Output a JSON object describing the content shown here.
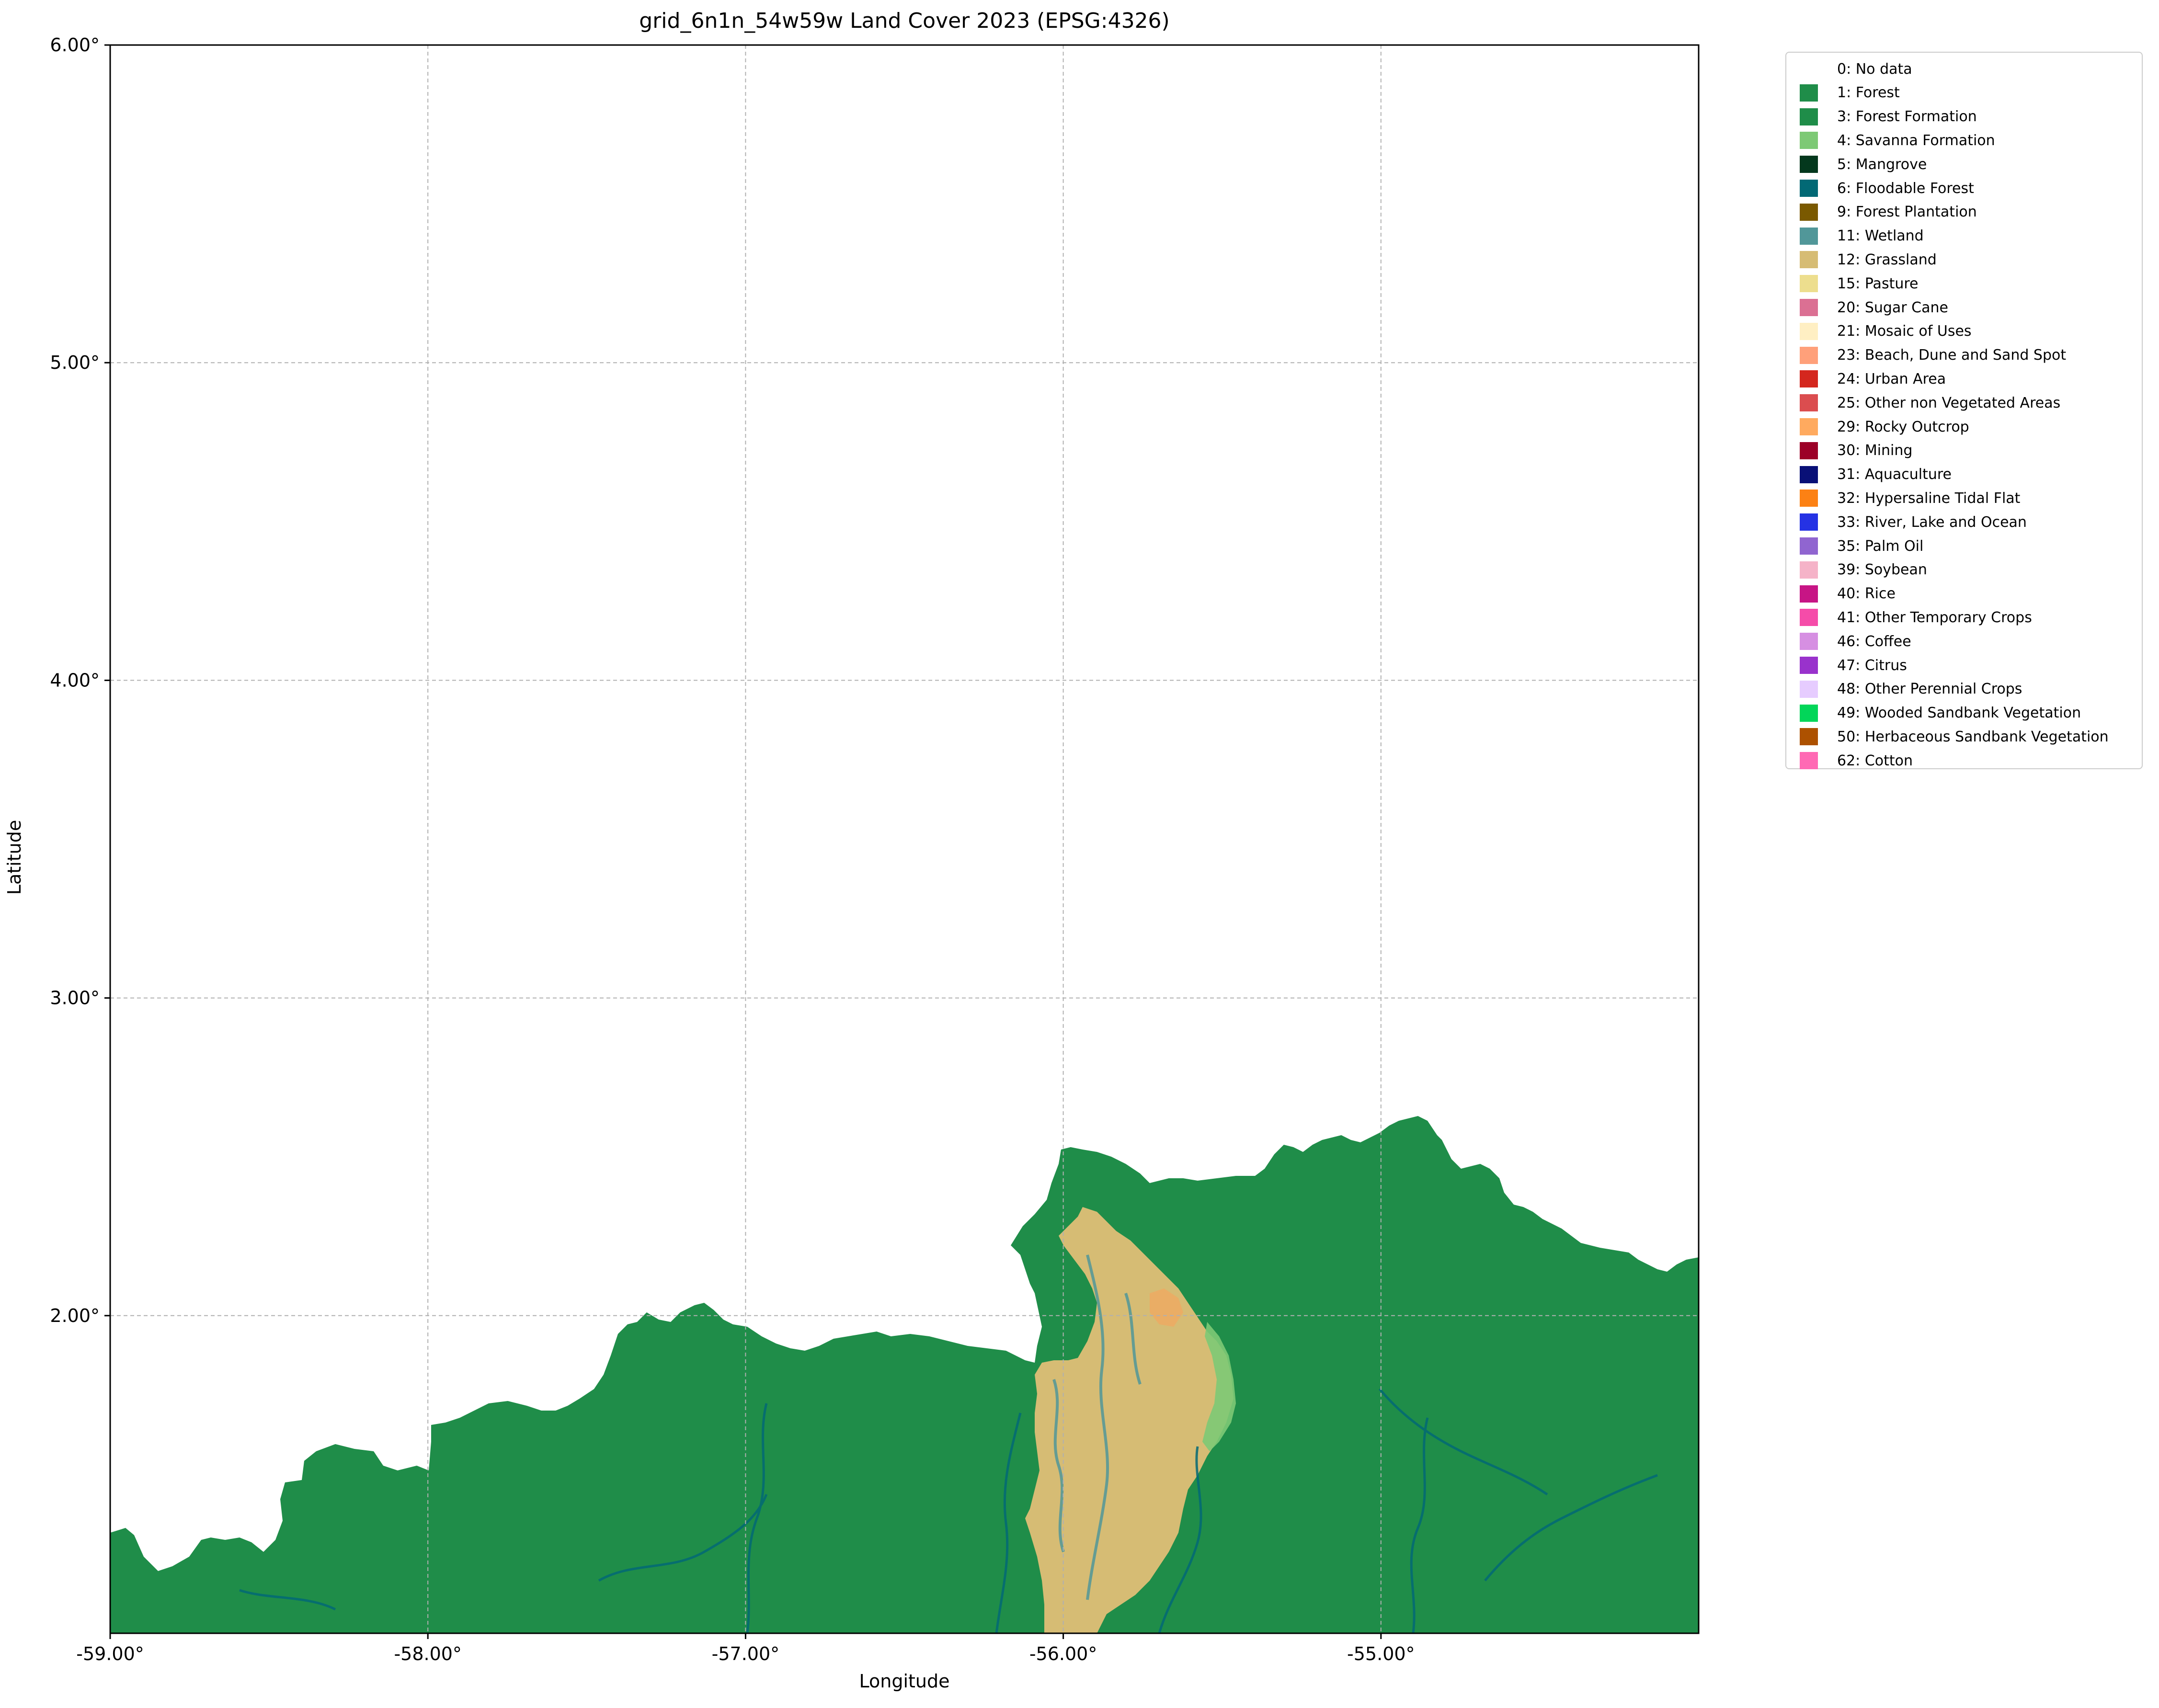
{
  "map": {
    "title": "grid_6n1n_54w59w Land Cover 2023 (EPSG:4326)",
    "xlabel": "Longitude",
    "ylabel": "Latitude",
    "extent": {
      "lon_min": -59.0,
      "lon_max": -54.0,
      "lat_min": 1.0,
      "lat_max": 6.0
    },
    "x_ticks": [
      {
        "value": -59.0,
        "label": "-59.00°"
      },
      {
        "value": -58.0,
        "label": "-58.00°"
      },
      {
        "value": -57.0,
        "label": "-57.00°"
      },
      {
        "value": -56.0,
        "label": "-56.00°"
      },
      {
        "value": -55.0,
        "label": "-55.00°"
      }
    ],
    "y_ticks": [
      {
        "value": 6.0,
        "label": "6.00°"
      },
      {
        "value": 5.0,
        "label": "5.00°"
      },
      {
        "value": 4.0,
        "label": "4.00°"
      },
      {
        "value": 3.0,
        "label": "3.00°"
      },
      {
        "value": 2.0,
        "label": "2.00°"
      }
    ],
    "grid": true,
    "legend_placement": "outside-right",
    "colors": {
      "forest": "#1f8d49",
      "grassland": "#d6bc74",
      "wetland": "#519799",
      "floodable_forest": "#026975",
      "savanna": "#7dc975",
      "rocky": "#f0a860"
    }
  },
  "legend": [
    {
      "label": "0: No data",
      "color": "#ffffff"
    },
    {
      "label": "1: Forest",
      "color": "#1f8d49"
    },
    {
      "label": "3: Forest Formation",
      "color": "#1f8d49"
    },
    {
      "label": "4: Savanna Formation",
      "color": "#7dc975"
    },
    {
      "label": "5: Mangrove",
      "color": "#04381d"
    },
    {
      "label": "6: Floodable Forest",
      "color": "#026975"
    },
    {
      "label": "9: Forest Plantation",
      "color": "#7a5900"
    },
    {
      "label": "11: Wetland",
      "color": "#519799"
    },
    {
      "label": "12: Grassland",
      "color": "#d6bc74"
    },
    {
      "label": "15: Pasture",
      "color": "#edde8e"
    },
    {
      "label": "20: Sugar Cane",
      "color": "#db7093"
    },
    {
      "label": "21: Mosaic of Uses",
      "color": "#ffefc3"
    },
    {
      "label": "23: Beach, Dune and Sand Spot",
      "color": "#ffa07a"
    },
    {
      "label": "24: Urban Area",
      "color": "#d4271e"
    },
    {
      "label": "25: Other non Vegetated Areas",
      "color": "#db4d4f"
    },
    {
      "label": "29: Rocky Outcrop",
      "color": "#ffaa5f"
    },
    {
      "label": "30: Mining",
      "color": "#9c0027"
    },
    {
      "label": "31: Aquaculture",
      "color": "#091077"
    },
    {
      "label": "32: Hypersaline Tidal Flat",
      "color": "#fc8114"
    },
    {
      "label": "33: River, Lake and Ocean",
      "color": "#2532e4"
    },
    {
      "label": "35: Palm Oil",
      "color": "#9065d0"
    },
    {
      "label": "39: Soybean",
      "color": "#f5b3c8"
    },
    {
      "label": "40: Rice",
      "color": "#c71585"
    },
    {
      "label": "41: Other Temporary Crops",
      "color": "#f54ca9"
    },
    {
      "label": "46: Coffee",
      "color": "#d68fe2"
    },
    {
      "label": "47: Citrus",
      "color": "#9932cc"
    },
    {
      "label": "48: Other Perennial Crops",
      "color": "#e6ccff"
    },
    {
      "label": "49: Wooded Sandbank Vegetation",
      "color": "#02d659"
    },
    {
      "label": "50: Herbaceous Sandbank Vegetation",
      "color": "#ad5100"
    },
    {
      "label": "62: Cotton",
      "color": "#ff69b4"
    }
  ]
}
